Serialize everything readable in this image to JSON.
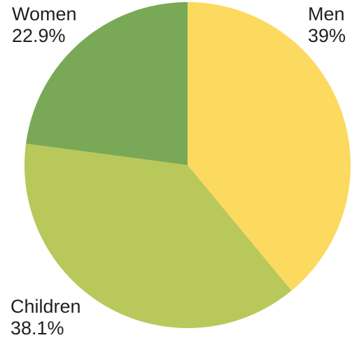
{
  "chart_data": {
    "type": "pie",
    "title": "",
    "slices": [
      {
        "label": "Men",
        "value": 39,
        "value_text": "39%",
        "color": "#fcd95f"
      },
      {
        "label": "Children",
        "value": 38.1,
        "value_text": "38.1%",
        "color": "#b9c85a"
      },
      {
        "label": "Women",
        "value": 22.9,
        "value_text": "22.9%",
        "color": "#79a957"
      }
    ],
    "start": "12 o'clock",
    "direction": "clockwise",
    "unit": "%"
  }
}
